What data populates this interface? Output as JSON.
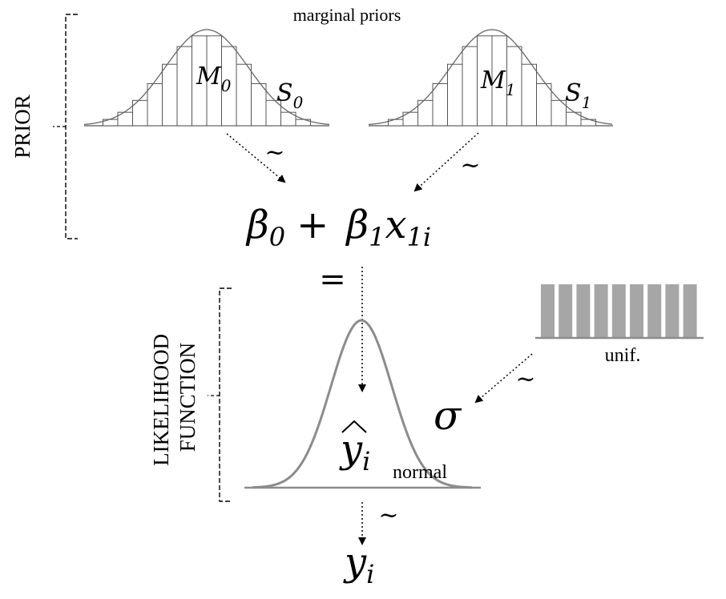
{
  "prior_section": {
    "label": "PRIOR",
    "caption": "marginal priors",
    "prior_0": {
      "mean_symbol": "M",
      "mean_subscript": "0",
      "sd_symbol": "S",
      "sd_subscript": "0"
    },
    "prior_1": {
      "mean_symbol": "M",
      "mean_subscript": "1",
      "sd_symbol": "S",
      "sd_subscript": "1"
    },
    "tilde_left": "~",
    "tilde_right": "~"
  },
  "linear_predictor": {
    "beta": "β",
    "beta0_sub": "0",
    "plus": "+",
    "beta1_sub": "1",
    "x": "x",
    "x_sub": "1i"
  },
  "equals": "=",
  "likelihood_section": {
    "label_line1": "LIKELIHOOD",
    "label_line2": "FUNCTION",
    "distribution_label": "normal",
    "yhat": "y",
    "yhat_sub": "i",
    "hat": "^"
  },
  "sigma_prior": {
    "label": "unif.",
    "tilde": "~",
    "sigma": "σ"
  },
  "outcome": {
    "tilde": "~",
    "y": "y",
    "y_sub": "i"
  },
  "colors": {
    "ink": "#000000",
    "curve_gray": "#8c8c8c",
    "uniform_bar": "#a6a6a6"
  }
}
